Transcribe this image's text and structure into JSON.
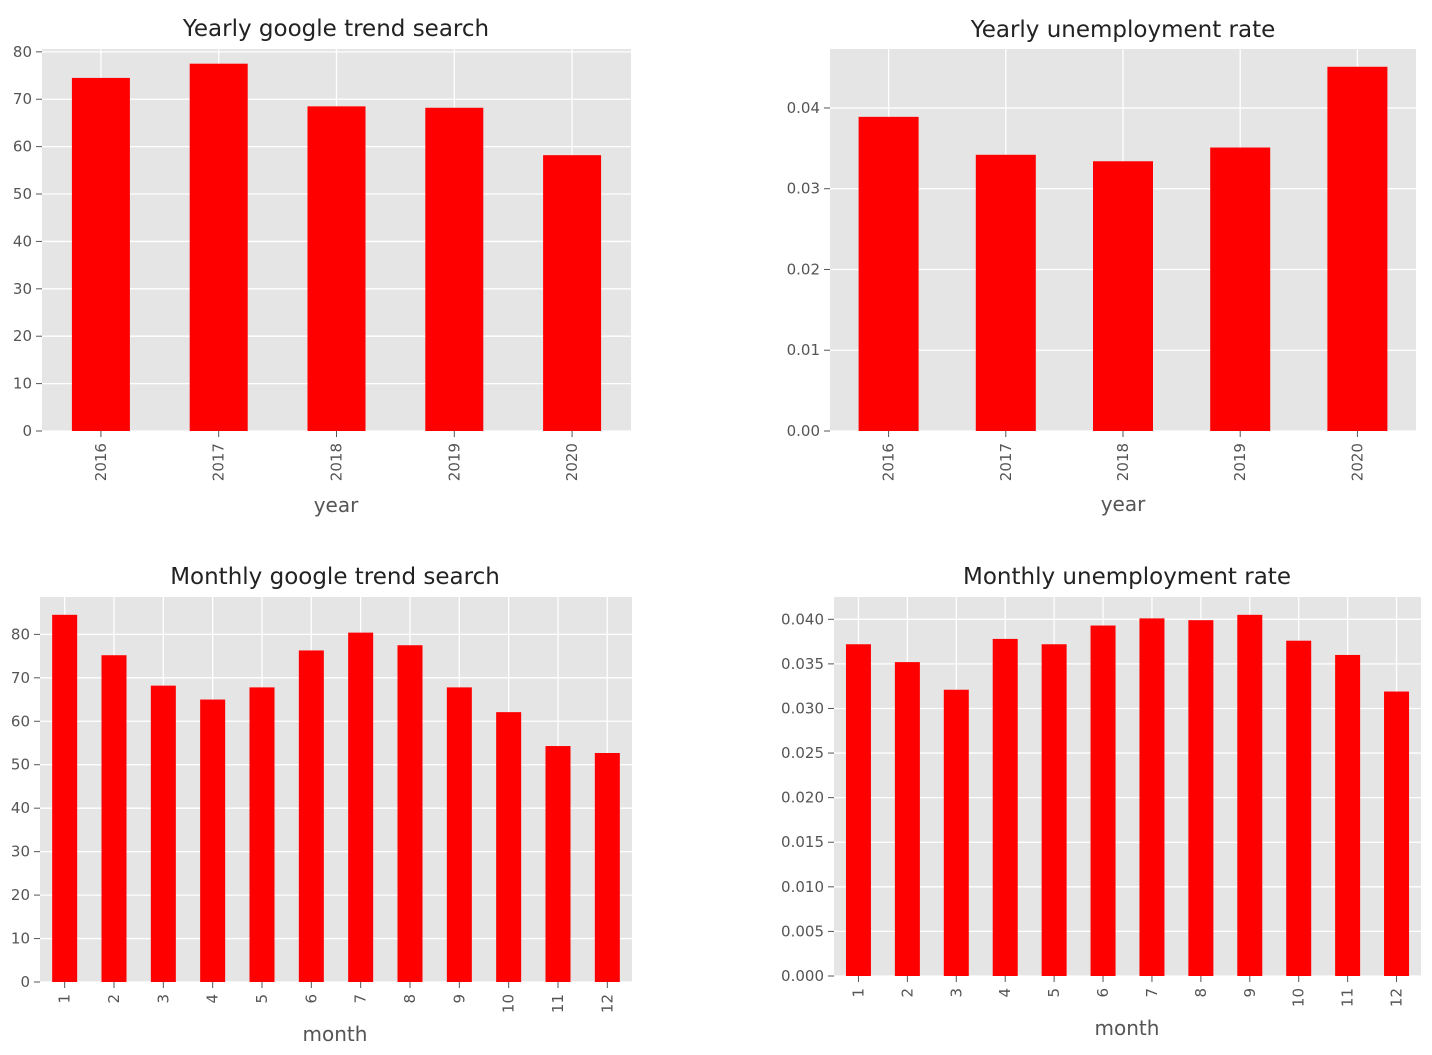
{
  "colors": {
    "bar": "#ff0000",
    "plot_bg": "#e5e5e5",
    "grid": "#ffffff",
    "tick": "#555555"
  },
  "chart_data": [
    {
      "type": "bar",
      "title": "Yearly google trend search",
      "xlabel": "year",
      "ylabel": "",
      "categories": [
        "2016",
        "2017",
        "2018",
        "2019",
        "2020"
      ],
      "values": [
        74.5,
        77.5,
        68.5,
        68.2,
        58.2
      ],
      "yticks": [
        "0",
        "10",
        "20",
        "30",
        "40",
        "50",
        "60",
        "70",
        "80"
      ],
      "ylim": [
        0,
        80.6
      ],
      "grid": true,
      "legend": "none"
    },
    {
      "type": "bar",
      "title": "Yearly unemployment rate",
      "xlabel": "year",
      "ylabel": "",
      "categories": [
        "2016",
        "2017",
        "2018",
        "2019",
        "2020"
      ],
      "values": [
        0.0389,
        0.0342,
        0.0334,
        0.0351,
        0.0451
      ],
      "yticks": [
        "0.00",
        "0.01",
        "0.02",
        "0.03",
        "0.04"
      ],
      "ylim": [
        0,
        0.0473
      ],
      "grid": true,
      "legend": "none"
    },
    {
      "type": "bar",
      "title": "Monthly google trend search",
      "xlabel": "month",
      "ylabel": "",
      "categories": [
        "1",
        "2",
        "3",
        "4",
        "5",
        "6",
        "7",
        "8",
        "9",
        "10",
        "11",
        "12"
      ],
      "values": [
        84.5,
        75.2,
        68.2,
        65.0,
        67.8,
        76.3,
        80.4,
        77.5,
        67.8,
        62.1,
        54.3,
        52.7
      ],
      "yticks": [
        "0",
        "10",
        "20",
        "30",
        "40",
        "50",
        "60",
        "70",
        "80"
      ],
      "ylim": [
        0,
        88.6
      ],
      "grid": true,
      "legend": "none"
    },
    {
      "type": "bar",
      "title": "Monthly unemployment rate",
      "xlabel": "month",
      "ylabel": "",
      "categories": [
        "1",
        "2",
        "3",
        "4",
        "5",
        "6",
        "7",
        "8",
        "9",
        "10",
        "11",
        "12"
      ],
      "values": [
        0.0372,
        0.0352,
        0.0321,
        0.0378,
        0.0372,
        0.0393,
        0.0401,
        0.0399,
        0.0405,
        0.0376,
        0.036,
        0.0319
      ],
      "yticks": [
        "0.000",
        "0.005",
        "0.010",
        "0.015",
        "0.020",
        "0.025",
        "0.030",
        "0.035",
        "0.040"
      ],
      "ylim": [
        0,
        0.0425
      ],
      "grid": true,
      "legend": "none"
    }
  ]
}
